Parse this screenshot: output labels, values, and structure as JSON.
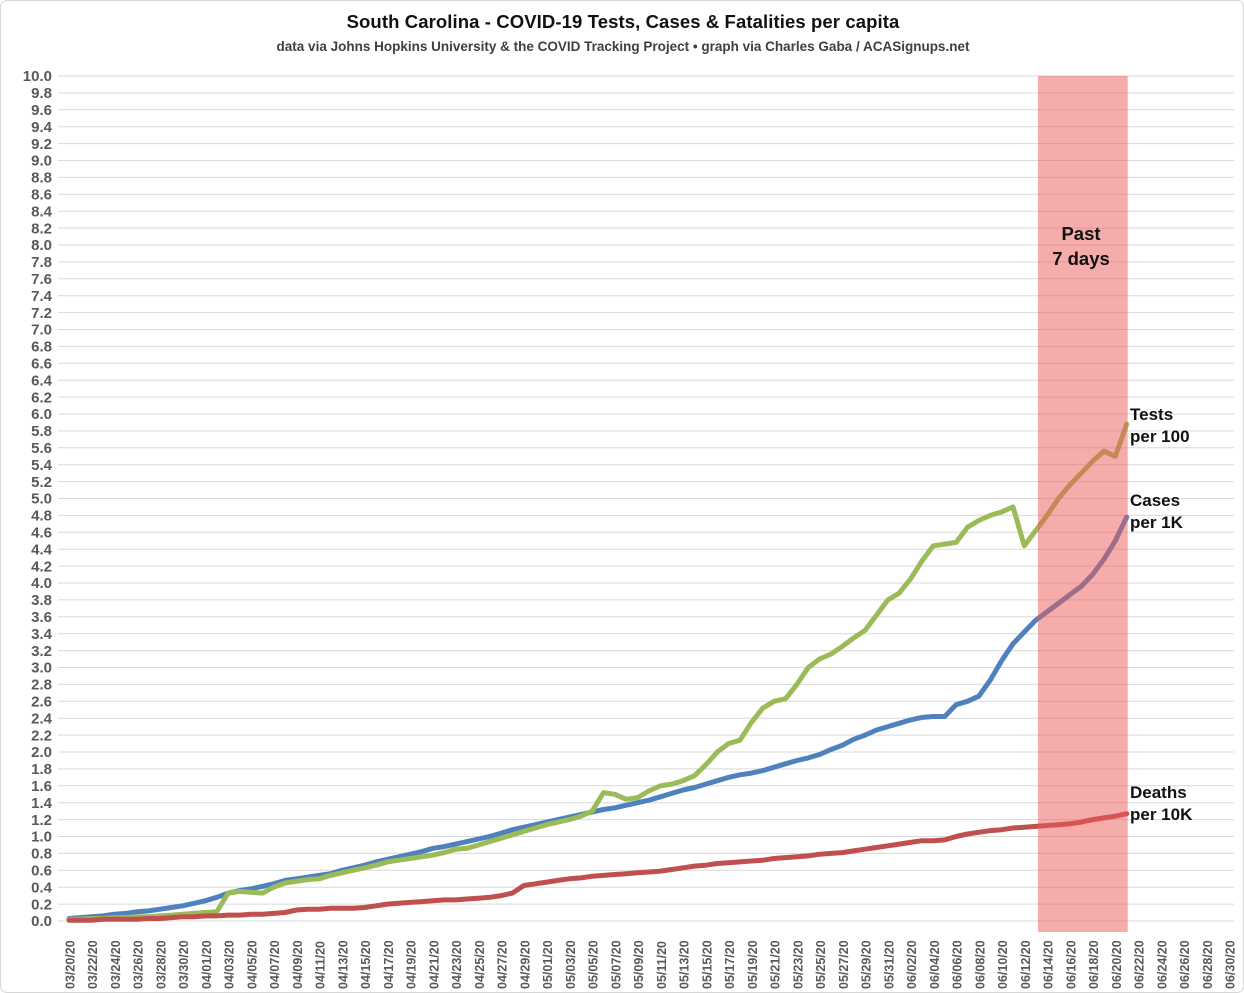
{
  "header": {
    "title": "South Carolina - COVID-19 Tests, Cases & Fatalities per capita",
    "subtitle": "data via Johns Hopkins University & the COVID Tracking Project • graph via Charles Gaba / ACASignups.net"
  },
  "colors": {
    "tests_line": "#9BBB59",
    "cases_line": "#4F81BD",
    "deaths_line": "#C0504D",
    "band_fill": "#EB5A58",
    "band_opacity": 0.5,
    "gridline": "#D9D9D9",
    "axis_text": "#595959",
    "annotation_text": "#111111"
  },
  "annotations": {
    "past7": {
      "line1": "Past",
      "line2": "7 days"
    },
    "tests": {
      "line1": "Tests",
      "line2": "per 100"
    },
    "cases": {
      "line1": "Cases",
      "line2": "per 1K"
    },
    "deaths": {
      "line1": "Deaths",
      "line2": "per 10K"
    }
  },
  "chart_data": {
    "type": "line",
    "title": "South Carolina - COVID-19 Tests, Cases & Fatalities per capita",
    "x_start_date": "03/20/20",
    "x_end_date": "06/21/20",
    "x_cadence": "daily",
    "grid": "horizontal-only",
    "y_axis": {
      "min": 0.0,
      "max": 10.0,
      "step": 0.2
    },
    "x_axis_tick_labels": [
      "03/20/20",
      "03/22/20",
      "03/24/20",
      "03/26/20",
      "03/28/20",
      "03/30/20",
      "04/01/20",
      "04/03/20",
      "04/05/20",
      "04/07/20",
      "04/09/20",
      "04/11/20",
      "04/13/20",
      "04/15/20",
      "04/17/20",
      "04/19/20",
      "04/21/20",
      "04/23/20",
      "04/25/20",
      "04/27/20",
      "04/29/20",
      "05/01/20",
      "05/03/20",
      "05/05/20",
      "05/07/20",
      "05/09/20",
      "05/11/20",
      "05/13/20",
      "05/15/20",
      "05/17/20",
      "05/19/20",
      "05/21/20",
      "05/23/20",
      "05/25/20",
      "05/27/20",
      "05/29/20",
      "05/31/20",
      "06/02/20",
      "06/04/20",
      "06/06/20",
      "06/08/20",
      "06/10/20",
      "06/12/20",
      "06/14/20",
      "06/16/20",
      "06/18/20",
      "06/20/20",
      "06/22/20",
      "06/24/20",
      "06/26/20",
      "06/28/20",
      "06/30/20"
    ],
    "highlight_band": {
      "label": "Past 7 days",
      "start_date": "06/13/20",
      "end_date": "06/21/20",
      "start_day_index": 85.2,
      "end_day_index": 93
    },
    "series": [
      {
        "name": "Tests per 100",
        "color": "#9BBB59",
        "values": [
          0.02,
          0.02,
          0.03,
          0.03,
          0.04,
          0.04,
          0.05,
          0.05,
          0.06,
          0.07,
          0.08,
          0.09,
          0.1,
          0.11,
          0.33,
          0.35,
          0.34,
          0.33,
          0.4,
          0.45,
          0.47,
          0.49,
          0.5,
          0.54,
          0.57,
          0.6,
          0.63,
          0.66,
          0.7,
          0.72,
          0.74,
          0.76,
          0.78,
          0.81,
          0.85,
          0.86,
          0.9,
          0.94,
          0.98,
          1.02,
          1.06,
          1.1,
          1.14,
          1.17,
          1.2,
          1.24,
          1.3,
          1.52,
          1.5,
          1.44,
          1.46,
          1.54,
          1.6,
          1.62,
          1.66,
          1.72,
          1.85,
          2.0,
          2.1,
          2.14,
          2.35,
          2.52,
          2.6,
          2.63,
          2.8,
          3.0,
          3.1,
          3.16,
          3.25,
          3.35,
          3.44,
          3.62,
          3.8,
          3.88,
          4.05,
          4.26,
          4.44,
          4.46,
          4.48,
          4.66,
          4.74,
          4.8,
          4.84,
          4.9,
          4.44,
          4.62,
          4.8,
          5.0,
          5.16,
          5.3,
          5.44,
          5.56,
          5.5,
          5.88
        ]
      },
      {
        "name": "Cases per 1K",
        "color": "#4F81BD",
        "values": [
          0.03,
          0.04,
          0.05,
          0.06,
          0.08,
          0.09,
          0.11,
          0.12,
          0.14,
          0.16,
          0.18,
          0.21,
          0.24,
          0.28,
          0.33,
          0.36,
          0.38,
          0.41,
          0.44,
          0.48,
          0.5,
          0.52,
          0.54,
          0.56,
          0.6,
          0.63,
          0.66,
          0.7,
          0.73,
          0.76,
          0.79,
          0.82,
          0.86,
          0.88,
          0.91,
          0.94,
          0.97,
          1.0,
          1.04,
          1.08,
          1.11,
          1.14,
          1.17,
          1.2,
          1.23,
          1.26,
          1.29,
          1.32,
          1.34,
          1.37,
          1.4,
          1.43,
          1.47,
          1.51,
          1.55,
          1.58,
          1.62,
          1.66,
          1.7,
          1.73,
          1.75,
          1.78,
          1.82,
          1.86,
          1.9,
          1.93,
          1.97,
          2.03,
          2.08,
          2.15,
          2.2,
          2.26,
          2.3,
          2.34,
          2.38,
          2.41,
          2.42,
          2.42,
          2.56,
          2.6,
          2.66,
          2.85,
          3.08,
          3.28,
          3.42,
          3.56,
          3.66,
          3.76,
          3.86,
          3.96,
          4.1,
          4.28,
          4.5,
          4.78
        ]
      },
      {
        "name": "Deaths per 10K",
        "color": "#C0504D",
        "values": [
          0.01,
          0.01,
          0.01,
          0.02,
          0.02,
          0.02,
          0.02,
          0.03,
          0.03,
          0.04,
          0.05,
          0.05,
          0.06,
          0.06,
          0.07,
          0.07,
          0.08,
          0.08,
          0.09,
          0.1,
          0.13,
          0.14,
          0.14,
          0.15,
          0.15,
          0.15,
          0.16,
          0.18,
          0.2,
          0.21,
          0.22,
          0.23,
          0.24,
          0.25,
          0.25,
          0.26,
          0.27,
          0.28,
          0.3,
          0.33,
          0.42,
          0.44,
          0.46,
          0.48,
          0.5,
          0.51,
          0.53,
          0.54,
          0.55,
          0.56,
          0.57,
          0.58,
          0.59,
          0.61,
          0.63,
          0.65,
          0.66,
          0.68,
          0.69,
          0.7,
          0.71,
          0.72,
          0.74,
          0.75,
          0.76,
          0.77,
          0.79,
          0.8,
          0.81,
          0.83,
          0.85,
          0.87,
          0.89,
          0.91,
          0.93,
          0.95,
          0.95,
          0.96,
          1.0,
          1.03,
          1.05,
          1.07,
          1.08,
          1.1,
          1.11,
          1.12,
          1.13,
          1.14,
          1.15,
          1.17,
          1.2,
          1.22,
          1.24,
          1.27
        ]
      }
    ]
  }
}
